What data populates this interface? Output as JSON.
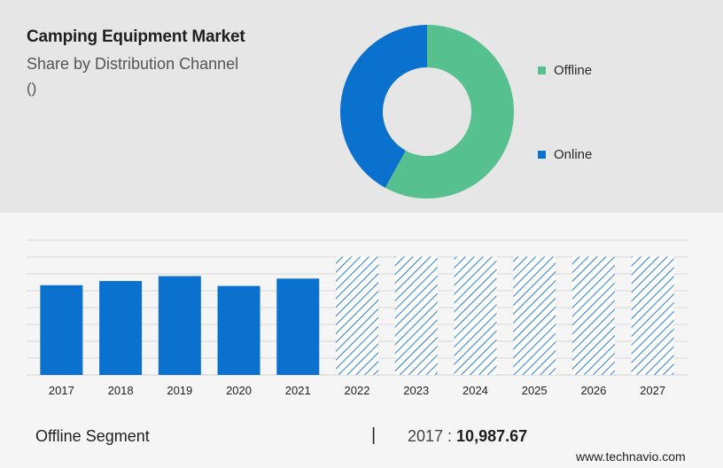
{
  "header": {
    "title": "Camping Equipment Market",
    "subtitle": "Share by Distribution Channel",
    "unit": "()"
  },
  "colors": {
    "offline": "#57c08f",
    "online": "#0a71cf",
    "forecast_hatch": "#3b86d6",
    "grid": "#d6d6d6"
  },
  "legend": [
    {
      "label": "Offline",
      "color": "#57c08f"
    },
    {
      "label": "Online",
      "color": "#0a71cf"
    }
  ],
  "chart_data": [
    {
      "type": "pie",
      "variant": "donut",
      "labels": [
        "Offline",
        "Online"
      ],
      "values": [
        58,
        42
      ]
    },
    {
      "type": "bar",
      "categories": [
        "2017",
        "2018",
        "2019",
        "2020",
        "2021",
        "2022",
        "2023",
        "2024",
        "2025",
        "2026",
        "2027"
      ],
      "values": [
        10987.67,
        11500,
        12100,
        10900,
        11800,
        14500,
        14500,
        14500,
        14500,
        14500,
        14500
      ],
      "forecast_from": "2022",
      "ylim": [
        0,
        16500
      ],
      "grid": true
    }
  ],
  "footer": {
    "segment": "Offline Segment",
    "separator": "|",
    "year_label": "2017 : ",
    "value": "10,987.67",
    "brand": "www.technavio.com"
  }
}
